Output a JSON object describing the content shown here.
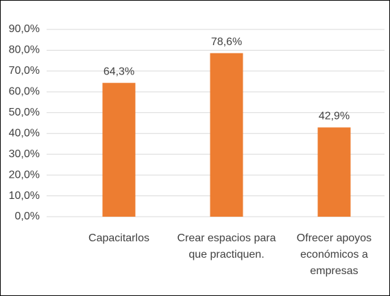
{
  "chart_data": {
    "type": "bar",
    "categories": [
      "Capacitarlos",
      "Crear espacios para que practiquen.",
      "Ofrecer apoyos económicos a empresas"
    ],
    "values": [
      64.3,
      78.6,
      42.9
    ],
    "value_labels": [
      "64,3%",
      "78,6%",
      "42,9%"
    ],
    "color": "#ed7d31",
    "ylim": [
      0,
      90
    ],
    "yticks": [
      {
        "value": 0,
        "label": "0,0%"
      },
      {
        "value": 10,
        "label": "10,0%"
      },
      {
        "value": 20,
        "label": "20,0%"
      },
      {
        "value": 30,
        "label": "30,0%"
      },
      {
        "value": 40,
        "label": "40,0%"
      },
      {
        "value": 50,
        "label": "50,0%"
      },
      {
        "value": 60,
        "label": "60,0%"
      },
      {
        "value": 70,
        "label": "70,0%"
      },
      {
        "value": 80,
        "label": "80,0%"
      },
      {
        "value": 90,
        "label": "90,0%"
      }
    ],
    "grid": true
  }
}
